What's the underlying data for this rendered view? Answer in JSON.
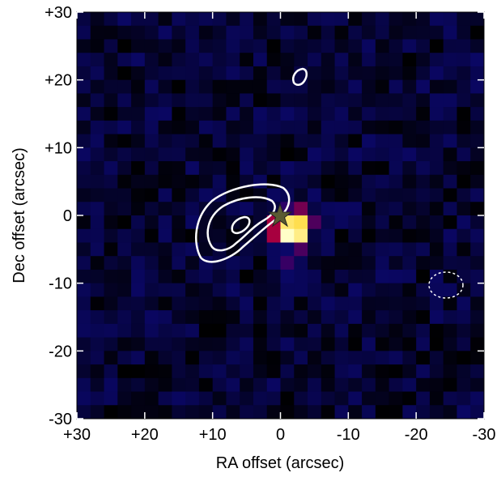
{
  "chart_data": {
    "type": "image",
    "x_label": "RA offset (arcsec)",
    "y_label": "Dec offset (arcsec)",
    "xlim": [
      30,
      -30
    ],
    "ylim": [
      -30,
      30
    ],
    "xticks": [
      {
        "value": 30,
        "label": "+30"
      },
      {
        "value": 20,
        "label": "+20"
      },
      {
        "value": 10,
        "label": "+10"
      },
      0,
      -10,
      -20,
      -30
    ],
    "yticks": [
      -30,
      -20,
      -10,
      0,
      {
        "value": 10,
        "label": "+10"
      },
      {
        "value": 20,
        "label": "+20"
      },
      {
        "value": 30,
        "label": "+30"
      }
    ]
  }
}
